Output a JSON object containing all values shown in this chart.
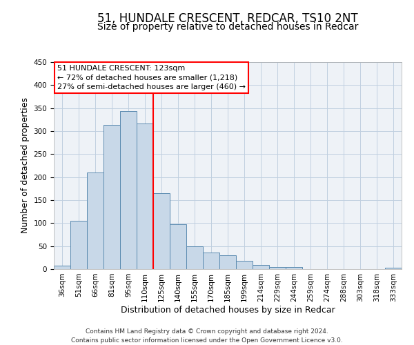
{
  "title": "51, HUNDALE CRESCENT, REDCAR, TS10 2NT",
  "subtitle": "Size of property relative to detached houses in Redcar",
  "xlabel": "Distribution of detached houses by size in Redcar",
  "ylabel": "Number of detached properties",
  "categories": [
    "36sqm",
    "51sqm",
    "66sqm",
    "81sqm",
    "95sqm",
    "110sqm",
    "125sqm",
    "140sqm",
    "155sqm",
    "170sqm",
    "185sqm",
    "199sqm",
    "214sqm",
    "229sqm",
    "244sqm",
    "259sqm",
    "274sqm",
    "288sqm",
    "303sqm",
    "318sqm",
    "333sqm"
  ],
  "bar_heights": [
    7,
    105,
    210,
    313,
    344,
    317,
    165,
    97,
    50,
    36,
    30,
    18,
    9,
    5,
    5,
    0,
    0,
    0,
    0,
    0,
    3
  ],
  "bar_color": "#c8d8e8",
  "bar_edge_color": "#5a8ab0",
  "vline_color": "red",
  "ylim": [
    0,
    450
  ],
  "yticks": [
    0,
    50,
    100,
    150,
    200,
    250,
    300,
    350,
    400,
    450
  ],
  "annotation_title": "51 HUNDALE CRESCENT: 123sqm",
  "annotation_line1": "← 72% of detached houses are smaller (1,218)",
  "annotation_line2": "27% of semi-detached houses are larger (460) →",
  "annotation_box_color": "white",
  "annotation_box_edge": "red",
  "footer1": "Contains HM Land Registry data © Crown copyright and database right 2024.",
  "footer2": "Contains public sector information licensed under the Open Government Licence v3.0.",
  "bg_color": "#eef2f7",
  "grid_color": "#c0cfe0",
  "title_fontsize": 12,
  "subtitle_fontsize": 10,
  "axis_label_fontsize": 9,
  "tick_fontsize": 7.5,
  "footer_fontsize": 6.5,
  "ann_fontsize": 8.0
}
